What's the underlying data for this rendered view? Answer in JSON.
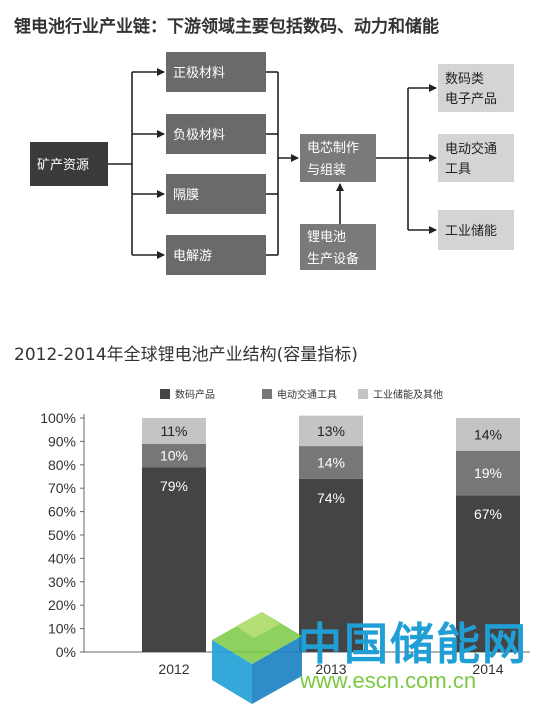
{
  "diagram": {
    "title": "锂电池行业产业链：下游领域主要包括数码、动力和储能",
    "source": "矿产资源",
    "materials": [
      "正极材料",
      "负极材料",
      "隔膜",
      "电解游"
    ],
    "middle": [
      "电芯制作",
      "与组装"
    ],
    "equipment": [
      "锂电池",
      "生产设备"
    ],
    "outputs": [
      [
        "数码类",
        "电子产品"
      ],
      [
        "电动交通",
        "工具"
      ],
      [
        "工业储能"
      ]
    ]
  },
  "chart_data": {
    "type": "bar",
    "stacked": true,
    "title": "2012-2014年全球锂电池产业结构(容量指标)",
    "categories": [
      "2012",
      "2013",
      "2014"
    ],
    "series": [
      {
        "name": "数码产品",
        "values": [
          79,
          74,
          67
        ],
        "labels": [
          "79%",
          "74%",
          "67%"
        ],
        "color": "#444444"
      },
      {
        "name": "电动交通工具",
        "values": [
          10,
          14,
          19
        ],
        "labels": [
          "10%",
          "14%",
          "19%"
        ],
        "color": "#777777"
      },
      {
        "name": "工业储能及其他",
        "values": [
          11,
          13,
          14
        ],
        "labels": [
          "11%",
          "13%",
          "14%"
        ],
        "color": "#c4c4c4"
      }
    ],
    "ylim": [
      0,
      100
    ],
    "yticks": [
      "0%",
      "10%",
      "20%",
      "30%",
      "40%",
      "50%",
      "60%",
      "70%",
      "80%",
      "90%",
      "100%"
    ],
    "legend_position": "top"
  },
  "watermark": {
    "name": "中国储能网",
    "url": "www.escn.com.cn",
    "colors": {
      "blue": "#1f9fd6",
      "green": "#7ac943"
    }
  }
}
